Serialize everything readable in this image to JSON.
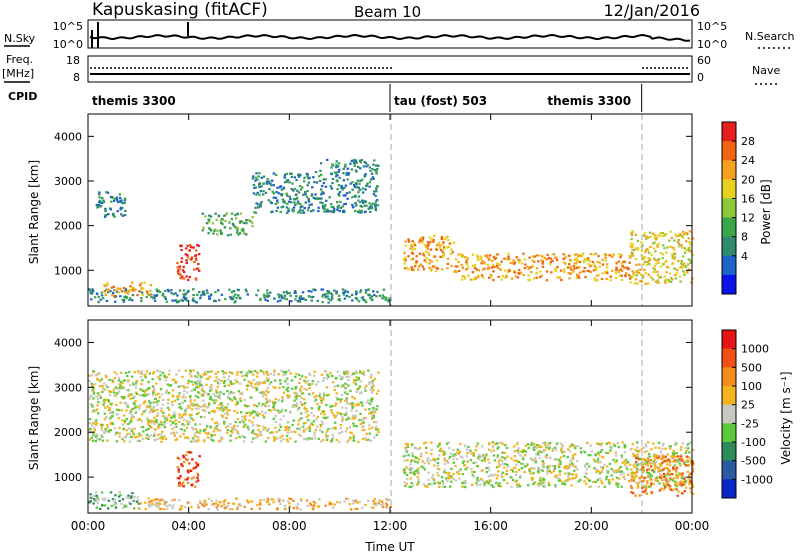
{
  "header": {
    "station": "Kapuskasing (fitACF)",
    "beam": "Beam 10",
    "date": "12/Jan/2016"
  },
  "top_panels": {
    "nsky_label": "N.Sky",
    "nsky_ticks": [
      "10^5",
      "10^0"
    ],
    "nsearch_label": "N.Search",
    "nsearch_ticks": [
      "10^5",
      "10^0"
    ],
    "freq_label_line1": "Freq.",
    "freq_label_line2": "[MHz]",
    "freq_ticks": [
      "18",
      "8"
    ],
    "nave_label": "Nave",
    "nave_ticks": [
      "60",
      "0"
    ],
    "cpid_label": "CPID",
    "cpid_segments": [
      {
        "label": "themis 3300",
        "start_hour": 0,
        "end_hour": 12
      },
      {
        "label": "tau (fost) 503",
        "start_hour": 12,
        "end_hour": 22
      },
      {
        "label": "themis 3300",
        "start_hour": 22,
        "end_hour": 24
      }
    ]
  },
  "colorbars": {
    "power": {
      "label": "Power [dB]",
      "ticks": [
        "28",
        "24",
        "20",
        "16",
        "12",
        "8",
        "4"
      ],
      "colors": [
        "#0a14e6",
        "#1e64c8",
        "#2f8a6e",
        "#3aa64a",
        "#8cc83c",
        "#e6d21e",
        "#f5a01e",
        "#f06414",
        "#e61e1e"
      ]
    },
    "velocity": {
      "label": "Velocity [m s⁻¹]",
      "ticks": [
        "1000",
        "500",
        "100",
        "25",
        "-25",
        "-100",
        "-500",
        "-1000"
      ],
      "colors": [
        "#0a28c8",
        "#2a5aa0",
        "#2e8a5a",
        "#5cc83a",
        "#c8c8c0",
        "#f5b41e",
        "#f58c1e",
        "#f05014",
        "#e61414"
      ]
    }
  },
  "chart_data": [
    {
      "type": "heatmap",
      "panel": "power",
      "ylabel": "Slant Range [km]",
      "ylim": [
        200,
        4500
      ],
      "yticks": [
        "1000",
        "2000",
        "3000",
        "4000"
      ],
      "xlim": [
        0,
        24
      ],
      "xticks": [
        "00:00",
        "04:00",
        "08:00",
        "12:00",
        "16:00",
        "20:00",
        "00:00"
      ],
      "features": [
        {
          "t0": 0.0,
          "t1": 12.0,
          "r0": 300,
          "r1": 600,
          "level": 2
        },
        {
          "t0": 0.5,
          "t1": 2.5,
          "r0": 450,
          "r1": 750,
          "level": 6
        },
        {
          "t0": 0.3,
          "t1": 1.5,
          "r0": 2200,
          "r1": 2800,
          "level": 2
        },
        {
          "t0": 3.5,
          "t1": 4.4,
          "r0": 800,
          "r1": 1600,
          "level": 8
        },
        {
          "t0": 4.5,
          "t1": 6.5,
          "r0": 1800,
          "r1": 2300,
          "level": 3
        },
        {
          "t0": 6.5,
          "t1": 9.0,
          "r0": 2300,
          "r1": 3200,
          "level": 2
        },
        {
          "t0": 9.0,
          "t1": 11.5,
          "r0": 2300,
          "r1": 3500,
          "level": 2
        },
        {
          "t0": 12.5,
          "t1": 14.5,
          "r0": 1000,
          "r1": 1800,
          "level": 6
        },
        {
          "t0": 14.5,
          "t1": 21.5,
          "r0": 800,
          "r1": 1400,
          "level": 6
        },
        {
          "t0": 21.5,
          "t1": 24.0,
          "r0": 700,
          "r1": 1900,
          "level": 5
        }
      ]
    },
    {
      "type": "heatmap",
      "panel": "velocity",
      "ylabel": "Slant Range [km]",
      "ylim": [
        200,
        4500
      ],
      "yticks": [
        "1000",
        "2000",
        "3000",
        "4000"
      ],
      "xlim": [
        0,
        24
      ],
      "xlabel": "Time UT",
      "xticks": [
        "00:00",
        "04:00",
        "08:00",
        "12:00",
        "16:00",
        "20:00",
        "00:00"
      ],
      "features": [
        {
          "t0": 0.0,
          "t1": 2.0,
          "r0": 300,
          "r1": 700,
          "level": 3
        },
        {
          "t0": 2.0,
          "t1": 12.0,
          "r0": 300,
          "r1": 550,
          "level": 5
        },
        {
          "t0": 3.5,
          "t1": 4.4,
          "r0": 800,
          "r1": 1600,
          "level": 7
        },
        {
          "t0": 0.0,
          "t1": 11.5,
          "r0": 1800,
          "r1": 3400,
          "level": 4
        },
        {
          "t0": 12.5,
          "t1": 24.0,
          "r0": 800,
          "r1": 1800,
          "level": 4
        },
        {
          "t0": 21.5,
          "t1": 24.0,
          "r0": 600,
          "r1": 1500,
          "level": 6
        }
      ]
    }
  ]
}
